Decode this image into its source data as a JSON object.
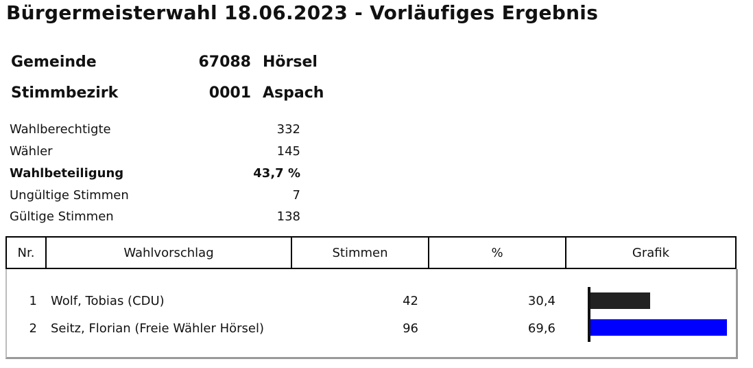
{
  "title": "Bürgermeisterwahl 18.06.2023 - Vorläufiges Ergebnis",
  "gemeinde": {
    "label": "Gemeinde",
    "code": "67088",
    "name": "Hörsel"
  },
  "stimmbezirk": {
    "label": "Stimmbezirk",
    "code": "0001",
    "name": "Aspach"
  },
  "stats": [
    {
      "label": "Wahlberechtigte",
      "value": "332"
    },
    {
      "label": "Wähler",
      "value": "145"
    },
    {
      "label": "Wahlbeteiligung",
      "value": "43,7 %"
    },
    {
      "label": "Ungültige Stimmen",
      "value": "7"
    },
    {
      "label": "Gültige Stimmen",
      "value": "138"
    }
  ],
  "table": {
    "headers": {
      "nr": "Nr.",
      "proposal": "Wahlvorschlag",
      "votes": "Stimmen",
      "percent": "%",
      "graphic": "Grafik"
    },
    "rows": [
      {
        "nr": "1",
        "name": "Wolf, Tobias (CDU)",
        "votes": "42",
        "percent": "30,4",
        "share": 0.304,
        "color": "#222222"
      },
      {
        "nr": "2",
        "name": "Seitz, Florian (Freie Wähler Hörsel)",
        "votes": "96",
        "percent": "69,6",
        "share": 0.696,
        "color": "#0000ff"
      }
    ]
  }
}
